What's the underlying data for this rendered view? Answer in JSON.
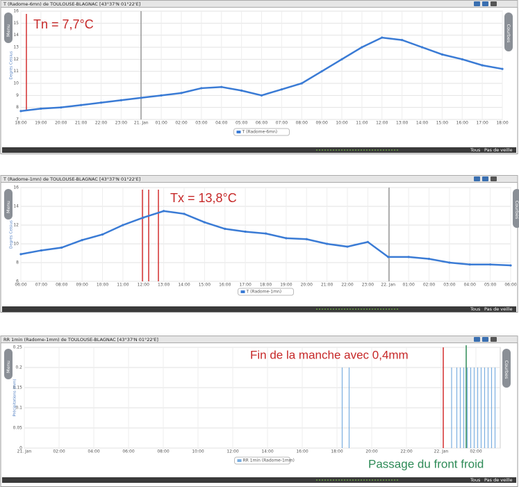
{
  "ui": {
    "menu": "Menu",
    "curves": "Courbes",
    "all": "Tous",
    "standby": "Pas de veille"
  },
  "chart_data": [
    {
      "type": "line",
      "window_title": "T (Radome-6mn) de TOULOUSE-BLAGNAC [43°37'N 01°22'E]",
      "y_label": "Degrés Celsius",
      "annotations": [
        "Tn = 7,7°C"
      ],
      "categories": [
        "18:00",
        "19:00",
        "20:00",
        "21:00",
        "22:00",
        "23:00",
        "21. Jan",
        "01:00",
        "02:00",
        "03:00",
        "04:00",
        "05:00",
        "06:00",
        "07:00",
        "08:00",
        "09:00",
        "10:00",
        "11:00",
        "12:00",
        "13:00",
        "14:00",
        "15:00",
        "16:00",
        "17:00",
        "18:00"
      ],
      "series": [
        {
          "name": "T (Radome-6mn)",
          "color": "#3a7bd5",
          "values": [
            7.7,
            7.9,
            8.0,
            8.2,
            8.4,
            8.6,
            8.8,
            9.0,
            9.2,
            9.6,
            9.7,
            9.4,
            9.0,
            9.5,
            10.0,
            11.0,
            12.0,
            13.0,
            13.8,
            13.6,
            13.0,
            12.4,
            12.0,
            11.5,
            11.2
          ]
        }
      ],
      "ylim": [
        7,
        16
      ],
      "yticks": [
        7,
        8,
        9,
        10,
        11,
        12,
        13,
        14,
        15,
        16
      ],
      "grid": true
    },
    {
      "type": "line",
      "window_title": "T (Radome-1mn) de TOULOUSE-BLAGNAC [43°37'N 01°22'E]",
      "y_label": "Degrés Celsius",
      "annotations": [
        "Tx = 13,8°C"
      ],
      "categories": [
        "06:00",
        "07:00",
        "08:00",
        "09:00",
        "10:00",
        "11:00",
        "12:00",
        "13:00",
        "14:00",
        "15:00",
        "16:00",
        "17:00",
        "18:00",
        "19:00",
        "20:00",
        "21:00",
        "22:00",
        "23:00",
        "22. Jan",
        "01:00",
        "02:00",
        "03:00",
        "04:00",
        "05:00",
        "06:00"
      ],
      "series": [
        {
          "name": "T (Radome-1mn)",
          "color": "#3a7bd5",
          "values": [
            8.9,
            9.3,
            9.6,
            10.4,
            11.0,
            12.0,
            12.8,
            13.5,
            13.2,
            12.3,
            11.6,
            11.3,
            11.1,
            10.6,
            10.5,
            10.0,
            9.7,
            10.2,
            8.6,
            8.6,
            8.4,
            8.0,
            7.8,
            7.8,
            7.7
          ]
        }
      ],
      "ylim": [
        6,
        16
      ],
      "yticks": [
        6,
        8,
        10,
        12,
        14,
        16
      ],
      "grid": true
    },
    {
      "type": "bar",
      "window_title": "RR 1min (Radome-1mm) de TOULOUSE-BLAGNAC [43°37'N 01°22'E]",
      "y_label": "Précipitations (mm)",
      "annotations": [
        "Fin de la manche avec 0,4mm",
        "Passage du front froid"
      ],
      "x": [
        18.3,
        18.7,
        24.6,
        24.9,
        25.1,
        25.3,
        25.5,
        25.7,
        25.9,
        26.1,
        26.3,
        26.5,
        26.7,
        26.9,
        27.1
      ],
      "series": [
        {
          "name": "RR 1min (Radome-1mm)",
          "color": "#7aaee0",
          "values": [
            0.2,
            0.2,
            0.2,
            0.2,
            0.2,
            0.2,
            0.2,
            0.2,
            0.2,
            0.2,
            0.2,
            0.2,
            0.2,
            0.2,
            0.2
          ]
        }
      ],
      "xlim": [
        0,
        27.4
      ],
      "xticks": [
        {
          "value": 0,
          "label": "21. Jan"
        },
        {
          "value": 2,
          "label": "02:00"
        },
        {
          "value": 4,
          "label": "04:00"
        },
        {
          "value": 6,
          "label": "06:00"
        },
        {
          "value": 8,
          "label": "08:00"
        },
        {
          "value": 10,
          "label": "10:00"
        },
        {
          "value": 12,
          "label": "12:00"
        },
        {
          "value": 14,
          "label": "14:00"
        },
        {
          "value": 16,
          "label": "16:00"
        },
        {
          "value": 18,
          "label": "18:00"
        },
        {
          "value": 20,
          "label": "20:00"
        },
        {
          "value": 22,
          "label": "22:00"
        },
        {
          "value": 24,
          "label": "22. Jan"
        },
        {
          "value": 26,
          "label": "02:00"
        }
      ],
      "ylim": [
        0,
        0.25
      ],
      "yticks": [
        0,
        0.05,
        0.1,
        0.15,
        0.2,
        0.25
      ],
      "grid": true
    }
  ]
}
